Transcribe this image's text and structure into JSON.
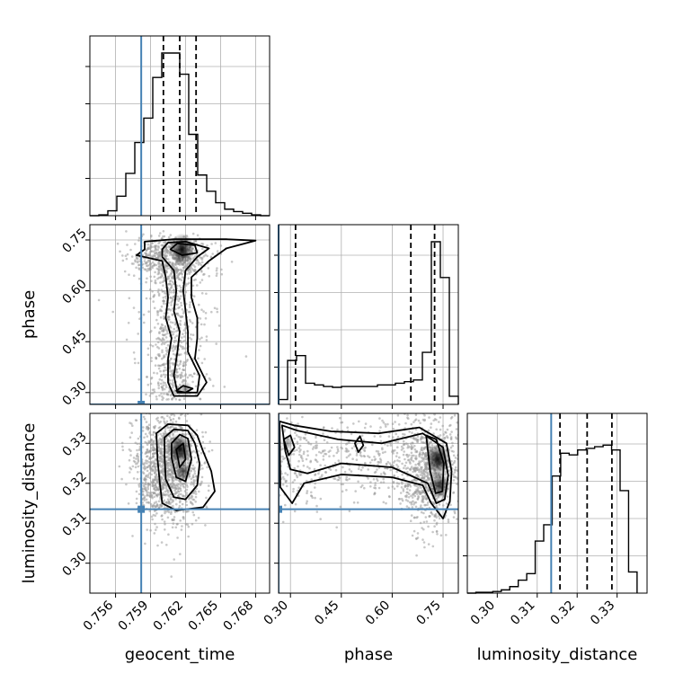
{
  "chart_data": {
    "type": "corner",
    "parameters": [
      {
        "name": "geocent_time",
        "label": "geocent_time",
        "truth": 0.7582,
        "range": [
          0.7538,
          0.7692
        ],
        "ticks": [
          "0.756",
          "0.759",
          "0.762",
          "0.765",
          "0.768"
        ],
        "tick_values": [
          0.756,
          0.759,
          0.762,
          0.765,
          0.768
        ],
        "quantiles": [
          0.7601,
          0.7615,
          0.7629
        ]
      },
      {
        "name": "phase",
        "label": "phase",
        "truth": 0.265,
        "range": [
          0.265,
          0.795
        ],
        "ticks": [
          "0.30",
          "0.45",
          "0.60",
          "0.75"
        ],
        "tick_values": [
          0.3,
          0.45,
          0.6,
          0.75
        ],
        "quantiles": [
          0.315,
          0.655,
          0.725
        ]
      },
      {
        "name": "luminosity_distance",
        "label": "luminosity_distance",
        "truth": 0.3135,
        "range": [
          0.2925,
          0.3375
        ],
        "ticks": [
          "0.30",
          "0.31",
          "0.32",
          "0.33"
        ],
        "tick_values": [
          0.3,
          0.31,
          0.32,
          0.33
        ],
        "quantiles": [
          0.3157,
          0.3225,
          0.3287
        ]
      }
    ],
    "histograms": {
      "geocent_time": {
        "edges": [
          0.7538,
          0.75457,
          0.75534,
          0.75611,
          0.75688,
          0.75765,
          0.75842,
          0.75919,
          0.75996,
          0.76073,
          0.7615,
          0.76227,
          0.76304,
          0.76381,
          0.76458,
          0.76535,
          0.76612,
          0.76689,
          0.76766,
          0.76843,
          0.7692
        ],
        "counts": [
          0,
          0.005,
          0.03,
          0.12,
          0.26,
          0.45,
          0.6,
          0.85,
          1.0,
          1.0,
          0.87,
          0.5,
          0.25,
          0.15,
          0.08,
          0.04,
          0.025,
          0.015,
          0.005,
          0
        ]
      },
      "phase": {
        "edges": [
          0.265,
          0.2915,
          0.318,
          0.3445,
          0.371,
          0.3975,
          0.424,
          0.4505,
          0.477,
          0.5035,
          0.53,
          0.5565,
          0.583,
          0.6095,
          0.636,
          0.6625,
          0.689,
          0.7155,
          0.742,
          0.7685,
          0.795
        ],
        "counts": [
          0.03,
          0.27,
          0.3,
          0.13,
          0.12,
          0.11,
          0.105,
          0.11,
          0.11,
          0.11,
          0.11,
          0.12,
          0.12,
          0.13,
          0.14,
          0.15,
          0.32,
          1.0,
          0.78,
          0.05
        ]
      },
      "luminosity_distance": {
        "edges": [
          0.2925,
          0.294625,
          0.29675,
          0.298875,
          0.301,
          0.303125,
          0.30525,
          0.307375,
          0.3095,
          0.311625,
          0.31375,
          0.315875,
          0.318,
          0.320125,
          0.32225,
          0.324375,
          0.3265,
          0.328625,
          0.33075,
          0.332875,
          0.335
        ],
        "counts": [
          0,
          0.005,
          0.005,
          0.01,
          0.02,
          0.04,
          0.08,
          0.12,
          0.32,
          0.42,
          0.72,
          0.86,
          0.85,
          0.88,
          0.89,
          0.9,
          0.91,
          0.88,
          0.63,
          0.13
        ]
      }
    },
    "contours": {
      "phase_vs_geocent_time": [
        [
          [
            0.7585,
            0.722
          ],
          [
            0.7578,
            0.705
          ],
          [
            0.76,
            0.688
          ],
          [
            0.7603,
            0.64
          ],
          [
            0.7605,
            0.58
          ],
          [
            0.7603,
            0.52
          ],
          [
            0.7608,
            0.46
          ],
          [
            0.7605,
            0.4
          ],
          [
            0.7605,
            0.33
          ],
          [
            0.761,
            0.29
          ],
          [
            0.763,
            0.29
          ],
          [
            0.7638,
            0.33
          ],
          [
            0.7628,
            0.4
          ],
          [
            0.763,
            0.46
          ],
          [
            0.763,
            0.52
          ],
          [
            0.7625,
            0.58
          ],
          [
            0.7625,
            0.64
          ],
          [
            0.764,
            0.688
          ],
          [
            0.7655,
            0.725
          ],
          [
            0.768,
            0.748
          ],
          [
            0.7655,
            0.752
          ],
          [
            0.761,
            0.752
          ],
          [
            0.7585,
            0.745
          ]
        ],
        [
          [
            0.76,
            0.722
          ],
          [
            0.76,
            0.7
          ],
          [
            0.761,
            0.66
          ],
          [
            0.7612,
            0.6
          ],
          [
            0.761,
            0.54
          ],
          [
            0.7615,
            0.48
          ],
          [
            0.7613,
            0.42
          ],
          [
            0.761,
            0.35
          ],
          [
            0.7613,
            0.3
          ],
          [
            0.763,
            0.3
          ],
          [
            0.7632,
            0.35
          ],
          [
            0.7622,
            0.42
          ],
          [
            0.7622,
            0.48
          ],
          [
            0.762,
            0.54
          ],
          [
            0.7618,
            0.6
          ],
          [
            0.762,
            0.66
          ],
          [
            0.763,
            0.7
          ],
          [
            0.764,
            0.725
          ],
          [
            0.762,
            0.745
          ],
          [
            0.7605,
            0.742
          ]
        ],
        [
          [
            0.7607,
            0.722
          ],
          [
            0.7617,
            0.705
          ],
          [
            0.763,
            0.712
          ],
          [
            0.7628,
            0.734
          ],
          [
            0.7613,
            0.74
          ]
        ],
        [
          [
            0.7612,
            0.305
          ],
          [
            0.762,
            0.3
          ],
          [
            0.7626,
            0.312
          ],
          [
            0.7618,
            0.32
          ]
        ]
      ],
      "luminosity_distance_vs_geocent_time": [
        [
          [
            0.7595,
            0.3325
          ],
          [
            0.7605,
            0.3348
          ],
          [
            0.7622,
            0.3345
          ],
          [
            0.763,
            0.332
          ],
          [
            0.7635,
            0.328
          ],
          [
            0.7642,
            0.323
          ],
          [
            0.7645,
            0.318
          ],
          [
            0.7635,
            0.314
          ],
          [
            0.7612,
            0.3132
          ],
          [
            0.76,
            0.315
          ],
          [
            0.7598,
            0.32
          ],
          [
            0.7596,
            0.326
          ]
        ],
        [
          [
            0.7602,
            0.3315
          ],
          [
            0.761,
            0.3335
          ],
          [
            0.7622,
            0.3332
          ],
          [
            0.7628,
            0.33
          ],
          [
            0.7632,
            0.325
          ],
          [
            0.763,
            0.3195
          ],
          [
            0.762,
            0.316
          ],
          [
            0.761,
            0.3165
          ],
          [
            0.7603,
            0.321
          ],
          [
            0.7602,
            0.327
          ]
        ],
        [
          [
            0.7608,
            0.33
          ],
          [
            0.7615,
            0.3322
          ],
          [
            0.7622,
            0.3312
          ],
          [
            0.7625,
            0.326
          ],
          [
            0.762,
            0.3205
          ],
          [
            0.7612,
            0.3215
          ],
          [
            0.7608,
            0.3265
          ]
        ],
        [
          [
            0.7612,
            0.3285
          ],
          [
            0.7618,
            0.33
          ],
          [
            0.762,
            0.326
          ],
          [
            0.7615,
            0.324
          ]
        ]
      ],
      "luminosity_distance_vs_phase": [
        [
          [
            0.268,
            0.3355
          ],
          [
            0.31,
            0.3345
          ],
          [
            0.42,
            0.333
          ],
          [
            0.56,
            0.3325
          ],
          [
            0.68,
            0.334
          ],
          [
            0.76,
            0.33
          ],
          [
            0.775,
            0.323
          ],
          [
            0.77,
            0.3155
          ],
          [
            0.75,
            0.3112
          ],
          [
            0.715,
            0.315
          ],
          [
            0.69,
            0.3195
          ],
          [
            0.6,
            0.3215
          ],
          [
            0.45,
            0.3222
          ],
          [
            0.34,
            0.32
          ],
          [
            0.305,
            0.315
          ],
          [
            0.27,
            0.319
          ]
        ],
        [
          [
            0.275,
            0.3345
          ],
          [
            0.32,
            0.3332
          ],
          [
            0.44,
            0.331
          ],
          [
            0.57,
            0.33
          ],
          [
            0.69,
            0.3325
          ],
          [
            0.75,
            0.329
          ],
          [
            0.765,
            0.322
          ],
          [
            0.755,
            0.316
          ],
          [
            0.73,
            0.315
          ],
          [
            0.705,
            0.32
          ],
          [
            0.6,
            0.324
          ],
          [
            0.45,
            0.325
          ],
          [
            0.35,
            0.3225
          ],
          [
            0.3,
            0.3235
          ],
          [
            0.285,
            0.328
          ]
        ],
        [
          [
            0.7,
            0.332
          ],
          [
            0.73,
            0.331
          ],
          [
            0.752,
            0.325
          ],
          [
            0.748,
            0.318
          ],
          [
            0.728,
            0.3175
          ],
          [
            0.712,
            0.323
          ]
        ],
        [
          [
            0.28,
            0.331
          ],
          [
            0.3,
            0.332
          ],
          [
            0.312,
            0.329
          ],
          [
            0.295,
            0.327
          ]
        ],
        [
          [
            0.49,
            0.33
          ],
          [
            0.505,
            0.3318
          ],
          [
            0.515,
            0.3295
          ],
          [
            0.5,
            0.3278
          ]
        ]
      ]
    },
    "density_peaks": [
      {
        "pair": "phase_vs_geocent_time",
        "x": 0.7617,
        "y": 0.722,
        "weight": 1.0
      },
      {
        "pair": "phase_vs_geocent_time",
        "x": 0.762,
        "y": 0.31,
        "weight": 0.35
      },
      {
        "pair": "luminosity_distance_vs_geocent_time",
        "x": 0.7615,
        "y": 0.3285,
        "weight": 1.0
      },
      {
        "pair": "luminosity_distance_vs_geocent_time",
        "x": 0.7618,
        "y": 0.323,
        "weight": 0.6
      },
      {
        "pair": "luminosity_distance_vs_phase",
        "x": 0.735,
        "y": 0.326,
        "weight": 1.0
      },
      {
        "pair": "luminosity_distance_vs_phase",
        "x": 0.74,
        "y": 0.3195,
        "weight": 0.8
      },
      {
        "pair": "luminosity_distance_vs_phase",
        "x": 0.29,
        "y": 0.33,
        "weight": 0.3
      }
    ],
    "colors": {
      "truth": "#4682b4",
      "hist": "#000000",
      "grid": "#b0b0b0",
      "points": "#9a9a9a"
    },
    "grid": true
  }
}
